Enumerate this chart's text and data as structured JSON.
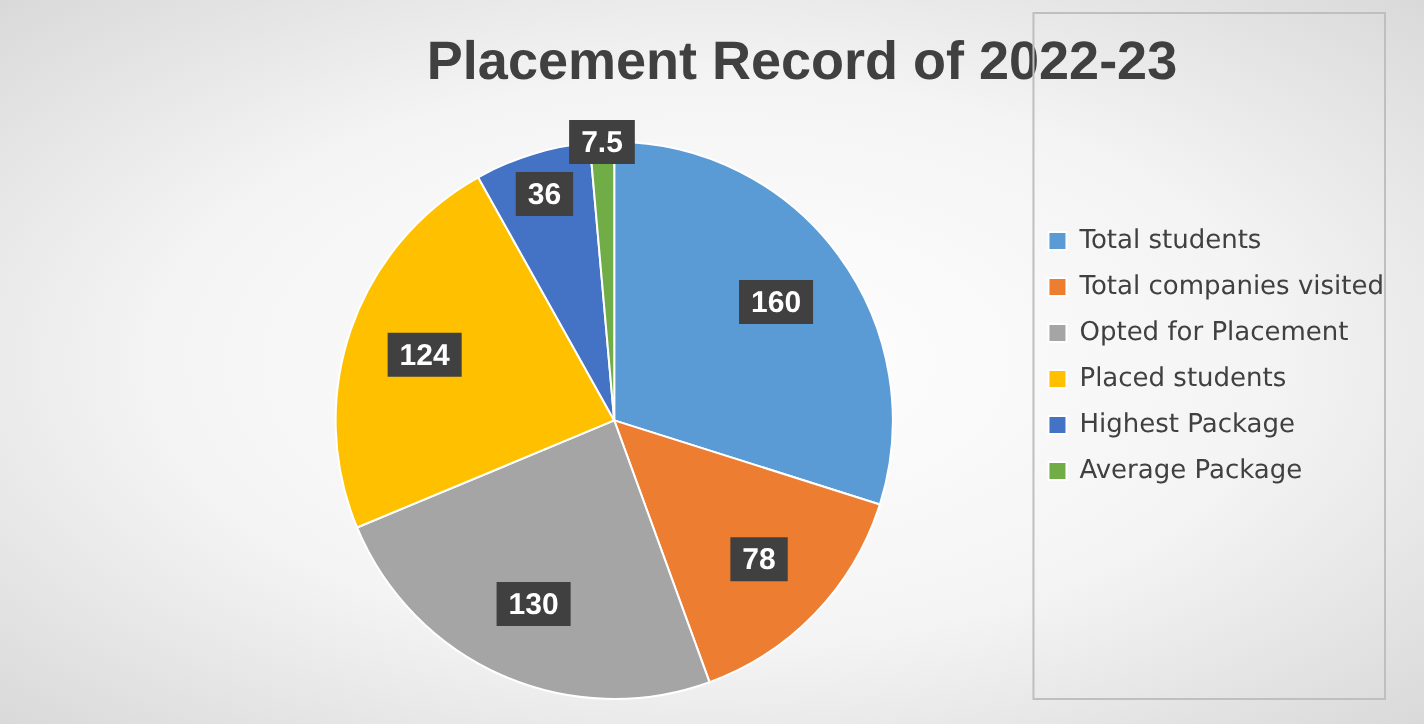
{
  "chart_data": {
    "type": "pie",
    "title": "Placement Record of 2022-23",
    "categories": [
      "Total students",
      "Total companies visited",
      "Opted for Placement",
      "Placed students",
      "Highest Package",
      "Average Package"
    ],
    "values": [
      160,
      78,
      130,
      124,
      36,
      7.5
    ],
    "colors": [
      "#5b9bd5",
      "#ed7d31",
      "#a5a5a5",
      "#ffc000",
      "#4472c4",
      "#70ad47"
    ],
    "data_labels": true,
    "legend": "right"
  }
}
